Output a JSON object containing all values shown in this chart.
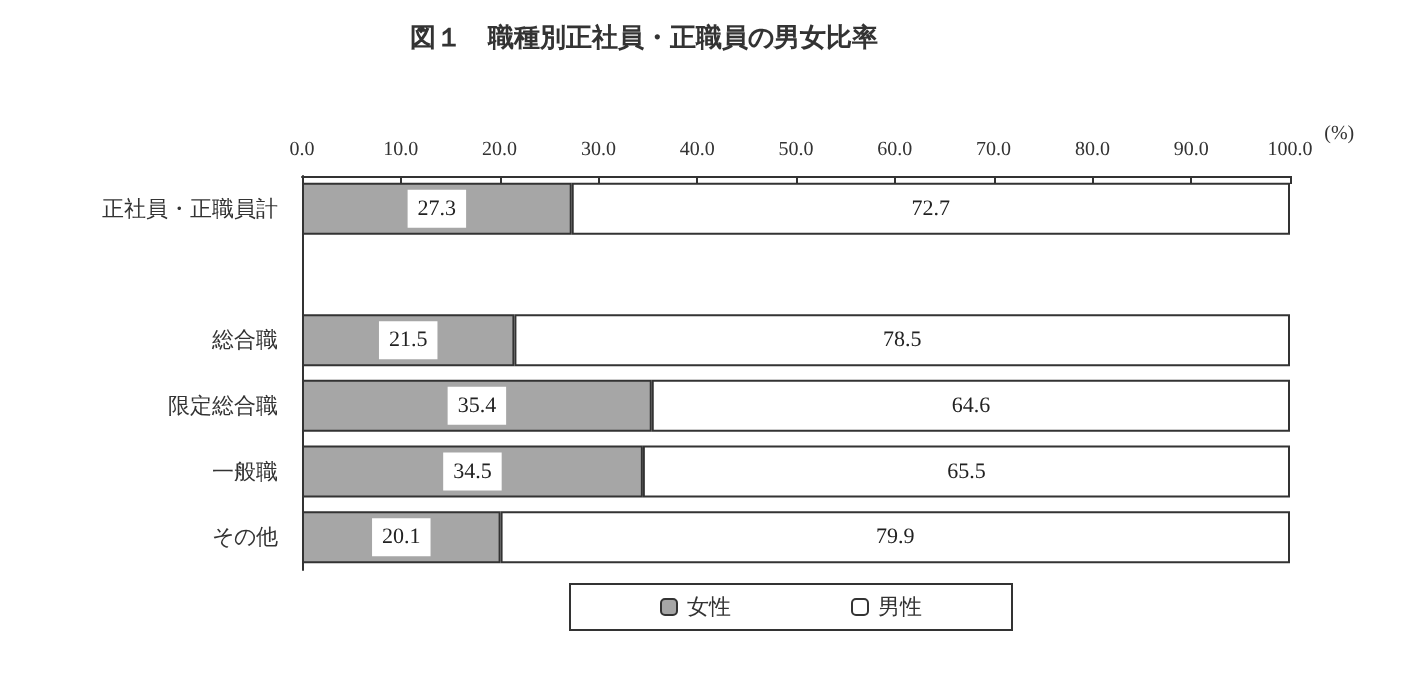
{
  "chart_data": {
    "type": "bar",
    "orientation": "horizontal",
    "stacked": true,
    "title": "図１　職種別正社員・正職員の男女比率",
    "xlabel": "(%)",
    "categories": [
      "正社員・正職員計",
      null,
      "総合職",
      "限定総合職",
      "一般職",
      "その他"
    ],
    "series": [
      {
        "name": "女性",
        "color": "#a6a6a6",
        "values": [
          27.3,
          null,
          21.5,
          35.4,
          34.5,
          20.1
        ]
      },
      {
        "name": "男性",
        "color": "#ffffff",
        "values": [
          72.7,
          null,
          78.5,
          64.6,
          65.5,
          79.9
        ]
      }
    ],
    "xlim": [
      0,
      100
    ],
    "xticks": [
      {
        "value": 0,
        "label": "0.0"
      },
      {
        "value": 10,
        "label": "10.0"
      },
      {
        "value": 20,
        "label": "20.0"
      },
      {
        "value": 30,
        "label": "30.0"
      },
      {
        "value": 40,
        "label": "40.0"
      },
      {
        "value": 50,
        "label": "50.0"
      },
      {
        "value": 60,
        "label": "60.0"
      },
      {
        "value": 70,
        "label": "70.0"
      },
      {
        "value": 80,
        "label": "80.0"
      },
      {
        "value": 90,
        "label": "90.0"
      },
      {
        "value": 100,
        "label": "100.0"
      }
    ],
    "data_labels": true,
    "grid": false,
    "legend": "bottom"
  }
}
